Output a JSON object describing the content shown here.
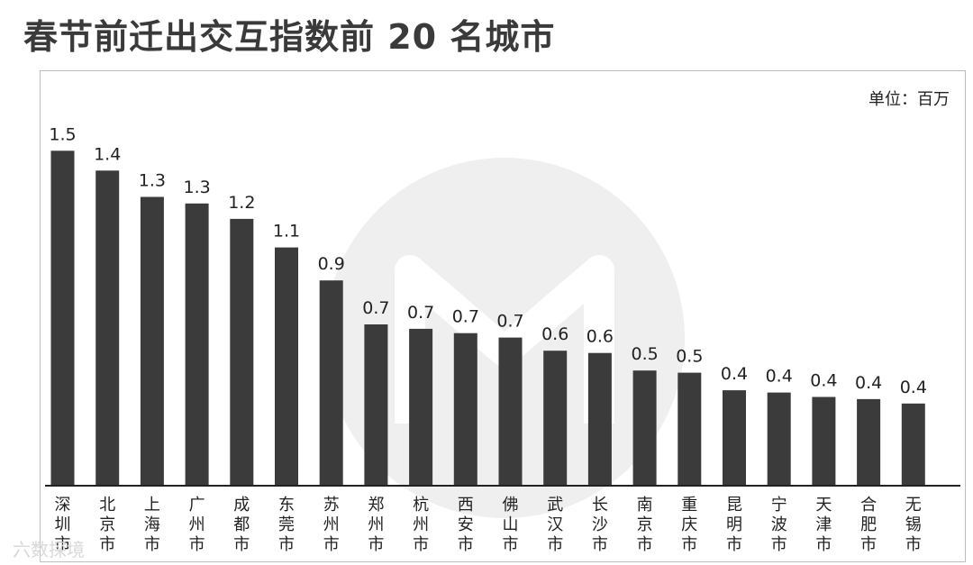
{
  "title": "春节前迁出交互指数前 20 名城市",
  "unit": "单位：百万",
  "watermark_text": "六数探境",
  "colors": {
    "bar": "#3b3b3b",
    "title": "#3a3a3a"
  },
  "chart_data": {
    "type": "bar",
    "title": "春节前迁出交互指数前 20 名城市",
    "xlabel": "",
    "ylabel": "",
    "unit": "百万",
    "categories": [
      "深圳市",
      "北京市",
      "上海市",
      "广州市",
      "成都市",
      "东莞市",
      "苏州市",
      "郑州市",
      "杭州市",
      "西安市",
      "佛山市",
      "武汉市",
      "长沙市",
      "南京市",
      "重庆市",
      "昆明市",
      "宁波市",
      "天津市",
      "合肥市",
      "无锡市"
    ],
    "values": [
      1.52,
      1.43,
      1.31,
      1.28,
      1.21,
      1.08,
      0.93,
      0.73,
      0.71,
      0.69,
      0.67,
      0.61,
      0.6,
      0.52,
      0.51,
      0.43,
      0.42,
      0.4,
      0.39,
      0.37
    ],
    "data_labels": [
      "1.5",
      "1.4",
      "1.3",
      "1.3",
      "1.2",
      "1.1",
      "0.9",
      "0.7",
      "0.7",
      "0.7",
      "0.7",
      "0.6",
      "0.6",
      "0.5",
      "0.5",
      "0.4",
      "0.4",
      "0.4",
      "0.4",
      "0.4"
    ],
    "ylim": [
      0,
      1.55
    ],
    "grid": false,
    "legend": "none"
  }
}
